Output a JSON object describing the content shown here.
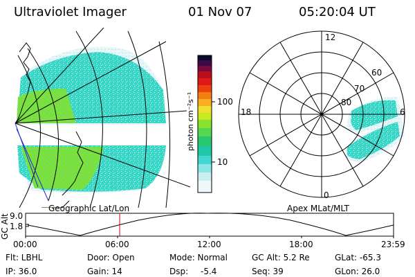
{
  "header": {
    "instrument": "Ultraviolet Imager",
    "date": "01 Nov 07",
    "time": "05:20:04 UT"
  },
  "colorbar": {
    "unit_label": "photon cm⁻²s⁻¹",
    "ticks": [
      "100",
      "10"
    ]
  },
  "left_panel": {
    "label": "Geographic Lat/Lon"
  },
  "right_panel": {
    "label": "Apex MLat/MLT",
    "mlt_labels": {
      "top": "12",
      "left": "18",
      "right": "6",
      "bottom": "0"
    },
    "lat_labels": [
      "60",
      "70",
      "80"
    ]
  },
  "orbit_plot": {
    "axis_title": "GC Alt",
    "y_ticks": [
      "9.0",
      "1.8"
    ],
    "x_ticks": [
      "00:00",
      "06:00",
      "12:00",
      "18:00",
      "23:59"
    ],
    "current_time_marker": "05:20",
    "line_color": "#000000",
    "marker_color": "#c00000"
  },
  "info": {
    "flt": "Flt: LBHL",
    "door": "Door: Open",
    "mode": "Mode: Normal",
    "gc_alt": "GC Alt: 5.2 Re",
    "glat": "GLat: -65.3",
    "ip": "IP: 36.0",
    "gain": "Gain: 14",
    "dsp_label": "Dsp:",
    "dsp_value": "-5.4",
    "seq": "Seq: 39",
    "glon": "GLon: 26.0"
  },
  "colors": {
    "aurora_cyan": "#37d7c8",
    "aurora_green": "#7ee03a",
    "aurora_pale": "#cfeef2"
  }
}
